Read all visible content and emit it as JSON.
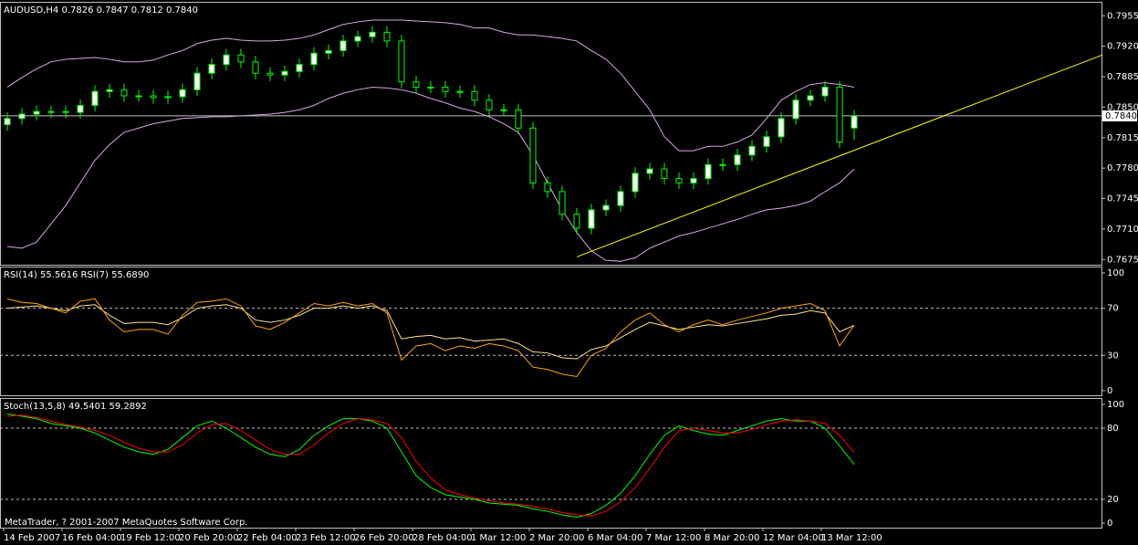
{
  "chart_data": [
    {
      "type": "candlestick",
      "title": "AUDUSD,H4  0.7826 0.7847 0.7812 0.7840",
      "categories": [
        "14 Feb 2007",
        null,
        null,
        null,
        "16 Feb 04:00",
        null,
        null,
        null,
        "19 Feb 12:00",
        null,
        null,
        null,
        "20 Feb 20:00",
        null,
        null,
        null,
        "22 Feb 04:00",
        null,
        null,
        null,
        "23 Feb 12:00",
        null,
        null,
        null,
        "26 Feb 20:00",
        null,
        null,
        null,
        "28 Feb 04:00",
        null,
        null,
        null,
        "1 Mar 12:00",
        null,
        null,
        null,
        "2 Mar 20:00",
        null,
        null,
        null,
        "6 Mar 04:00",
        null,
        null,
        null,
        "7 Mar 12:00",
        null,
        null,
        null,
        "8 Mar 20:00",
        null,
        null,
        null,
        "12 Mar 04:00",
        null,
        null,
        null,
        "13 Mar 12:00",
        null,
        null
      ],
      "open": [
        0.783,
        0.7837,
        0.7842,
        0.7845,
        0.7845,
        0.7844,
        0.7852,
        0.7868,
        0.787,
        0.7863,
        0.7863,
        0.7861,
        0.7862,
        0.787,
        0.7889,
        0.7899,
        0.791,
        0.7902,
        0.7889,
        0.7887,
        0.7891,
        0.7899,
        0.7912,
        0.7915,
        0.7926,
        0.7931,
        0.7936,
        0.7926,
        0.7879,
        0.7873,
        0.7873,
        0.7868,
        0.7868,
        0.7858,
        0.7847,
        0.7847,
        0.7826,
        0.7763,
        0.7753,
        0.7727,
        0.7711,
        0.7732,
        0.7737,
        0.7753,
        0.7774,
        0.7779,
        0.7768,
        0.7763,
        0.7768,
        0.7784,
        0.7784,
        0.7795,
        0.7805,
        0.7816,
        0.7837,
        0.7858,
        0.7863,
        0.7873,
        0.7826
      ],
      "high": [
        0.7844,
        0.7849,
        0.7852,
        0.7852,
        0.7852,
        0.7859,
        0.7875,
        0.7877,
        0.7877,
        0.787,
        0.787,
        0.7869,
        0.7877,
        0.7896,
        0.7906,
        0.7917,
        0.7917,
        0.7909,
        0.7896,
        0.7898,
        0.7906,
        0.7919,
        0.7922,
        0.7933,
        0.7938,
        0.7943,
        0.7943,
        0.7933,
        0.7886,
        0.788,
        0.788,
        0.7875,
        0.7875,
        0.7865,
        0.7854,
        0.7854,
        0.7833,
        0.777,
        0.776,
        0.7734,
        0.7739,
        0.7744,
        0.776,
        0.7781,
        0.7786,
        0.7786,
        0.7775,
        0.7775,
        0.7791,
        0.7791,
        0.7802,
        0.7812,
        0.7823,
        0.7844,
        0.7865,
        0.787,
        0.788,
        0.788,
        0.7847
      ],
      "low": [
        0.7823,
        0.783,
        0.7835,
        0.7838,
        0.7837,
        0.7837,
        0.7845,
        0.7861,
        0.7856,
        0.7856,
        0.7854,
        0.7854,
        0.7855,
        0.7863,
        0.7882,
        0.7892,
        0.7895,
        0.7882,
        0.788,
        0.788,
        0.7884,
        0.7892,
        0.7905,
        0.7908,
        0.7919,
        0.7924,
        0.7919,
        0.7872,
        0.7866,
        0.7866,
        0.7861,
        0.7861,
        0.7851,
        0.784,
        0.784,
        0.7819,
        0.7756,
        0.7746,
        0.772,
        0.7704,
        0.7704,
        0.7725,
        0.773,
        0.7746,
        0.7767,
        0.7761,
        0.7756,
        0.7756,
        0.7761,
        0.7777,
        0.7777,
        0.7788,
        0.7798,
        0.7809,
        0.783,
        0.7851,
        0.7856,
        0.7803,
        0.7812
      ],
      "close": [
        0.7837,
        0.7842,
        0.7845,
        0.7845,
        0.7844,
        0.7852,
        0.7868,
        0.787,
        0.7863,
        0.7863,
        0.7861,
        0.7862,
        0.787,
        0.7889,
        0.7899,
        0.791,
        0.7902,
        0.7889,
        0.7887,
        0.7891,
        0.7899,
        0.7912,
        0.7915,
        0.7926,
        0.7931,
        0.7936,
        0.7926,
        0.7879,
        0.7873,
        0.7873,
        0.7868,
        0.7868,
        0.7858,
        0.7847,
        0.7847,
        0.7826,
        0.7763,
        0.7753,
        0.7727,
        0.7711,
        0.7732,
        0.7737,
        0.7753,
        0.7774,
        0.7779,
        0.7768,
        0.7763,
        0.7768,
        0.7784,
        0.7784,
        0.7795,
        0.7805,
        0.7816,
        0.7837,
        0.7858,
        0.7863,
        0.7873,
        0.781,
        0.784
      ],
      "wick_color": "#00ff00",
      "bull_color": "#ffffff",
      "bear_color": "#000000",
      "bands": [
        {
          "color": "#d9a6e6",
          "values": [
            0.7873,
            0.7884,
            0.7894,
            0.7902,
            0.7905,
            0.7906,
            0.7907,
            0.7905,
            0.7902,
            0.7902,
            0.7904,
            0.791,
            0.7915,
            0.7923,
            0.7927,
            0.7929,
            0.7927,
            0.7926,
            0.7926,
            0.7927,
            0.7929,
            0.7933,
            0.7939,
            0.7945,
            0.7948,
            0.795,
            0.795,
            0.795,
            0.7949,
            0.7948,
            0.7947,
            0.7945,
            0.7941,
            0.7941,
            0.7936,
            0.7933,
            0.7933,
            0.7931,
            0.7929,
            0.7926,
            0.7915,
            0.7905,
            0.7889,
            0.7868,
            0.7847,
            0.7816,
            0.78,
            0.78,
            0.7805,
            0.7805,
            0.781,
            0.7818,
            0.7837,
            0.7858,
            0.7868,
            0.7876,
            0.7878,
            0.7876,
            0.7873
          ]
        },
        {
          "color": "#d9a6e6",
          "values": [
            0.769,
            0.7688,
            0.7695,
            0.7716,
            0.7737,
            0.7763,
            0.7789,
            0.7807,
            0.7821,
            0.7826,
            0.7831,
            0.7834,
            0.7837,
            0.7838,
            0.7839,
            0.7839,
            0.784,
            0.7841,
            0.7842,
            0.7844,
            0.7847,
            0.7852,
            0.786,
            0.7866,
            0.787,
            0.7873,
            0.7872,
            0.787,
            0.7866,
            0.786,
            0.7855,
            0.7849,
            0.7845,
            0.7839,
            0.7831,
            0.7821,
            0.7795,
            0.7763,
            0.7732,
            0.7706,
            0.7685,
            0.7674,
            0.7673,
            0.7677,
            0.7688,
            0.7695,
            0.7702,
            0.7706,
            0.7711,
            0.7716,
            0.7721,
            0.7727,
            0.7732,
            0.7734,
            0.7737,
            0.7742,
            0.7753,
            0.7763,
            0.7779
          ]
        }
      ],
      "trendline": {
        "color": "#ffff00",
        "x": [
          39,
          75
        ],
        "values": [
          0.7678,
          0.791
        ]
      },
      "last_price": {
        "value": 0.784,
        "label": "0.7840"
      },
      "ylim": [
        0.7669,
        0.7971
      ],
      "yticks": [
        0.7955,
        {
          "value": 0.792,
          "label": "0.7920"
        },
        0.7885,
        {
          "value": 0.785,
          "label": "0.7850"
        },
        0.7815,
        {
          "value": 0.778,
          "label": "0.7780"
        },
        0.7745,
        {
          "value": 0.771,
          "label": "0.7710"
        },
        0.7675
      ]
    },
    {
      "type": "line",
      "title": "RSI(14) 55.5616  RSI(7) 55.6890",
      "series": [
        {
          "color": "#ffe38a",
          "values": [
            70,
            71,
            72,
            70,
            68,
            72,
            73,
            64,
            57,
            58,
            58,
            56,
            62,
            70,
            72,
            73,
            70,
            60,
            58,
            60,
            64,
            70,
            70,
            72,
            70,
            72,
            68,
            44,
            46,
            47,
            44,
            45,
            42,
            43,
            44,
            40,
            33,
            32,
            28,
            27,
            35,
            38,
            45,
            52,
            58,
            55,
            52,
            54,
            56,
            55,
            57,
            59,
            61,
            64,
            65,
            68,
            66,
            50,
            55.5616
          ]
        },
        {
          "color": "#ffa500",
          "values": [
            78,
            75,
            74,
            70,
            66,
            76,
            78,
            60,
            50,
            52,
            52,
            48,
            64,
            75,
            76,
            78,
            72,
            55,
            52,
            58,
            66,
            74,
            72,
            75,
            72,
            74,
            66,
            26,
            38,
            40,
            34,
            38,
            36,
            40,
            38,
            34,
            20,
            18,
            14,
            12,
            30,
            36,
            50,
            60,
            66,
            56,
            50,
            56,
            60,
            56,
            60,
            63,
            66,
            70,
            72,
            74,
            68,
            38,
            55.689
          ]
        }
      ],
      "levels": [
        70,
        30
      ],
      "ylim": [
        -3.9,
        105.4
      ],
      "yticks": [
        100,
        70,
        30,
        0
      ]
    },
    {
      "type": "line",
      "title": "Stoch(13,5,8) 49.5401 59.2892",
      "series": [
        {
          "color": "#00ff00",
          "values": [
            92,
            90,
            88,
            84,
            82,
            80,
            76,
            70,
            64,
            60,
            58,
            62,
            72,
            82,
            86,
            80,
            72,
            64,
            58,
            56,
            62,
            74,
            82,
            88,
            88,
            86,
            80,
            60,
            40,
            30,
            24,
            22,
            20,
            17,
            16,
            15,
            12,
            10,
            7,
            5,
            8,
            15,
            25,
            40,
            58,
            74,
            82,
            78,
            75,
            74,
            78,
            82,
            86,
            88,
            86,
            86,
            80,
            65,
            49.5401
          ]
        },
        {
          "color": "#ff0000",
          "values": [
            90,
            91,
            89,
            86,
            83,
            81,
            78,
            74,
            68,
            63,
            60,
            60,
            66,
            76,
            83,
            84,
            78,
            70,
            62,
            58,
            58,
            66,
            76,
            84,
            88,
            87,
            84,
            72,
            52,
            38,
            28,
            24,
            21,
            19,
            17,
            16,
            14,
            12,
            9,
            7,
            6,
            10,
            18,
            30,
            46,
            64,
            78,
            80,
            78,
            76,
            76,
            79,
            83,
            86,
            87,
            86,
            84,
            74,
            59.2892
          ]
        }
      ],
      "levels": [
        80,
        20
      ],
      "ylim": [
        -3.8,
        105.4
      ],
      "yticks": [
        100,
        80,
        20,
        0
      ]
    }
  ],
  "footer": "MetaTrader, ? 2001-2007 MetaQuotes Software Corp."
}
